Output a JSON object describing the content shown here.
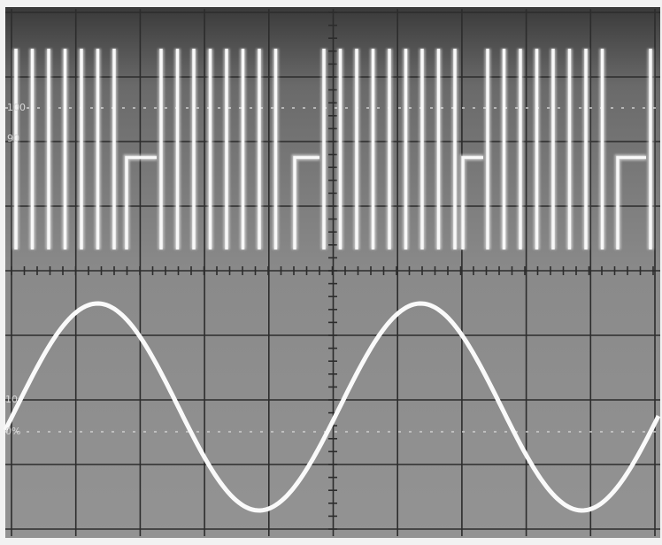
{
  "graticule_labels": [
    "100",
    "90",
    "10",
    "0%"
  ]
}
